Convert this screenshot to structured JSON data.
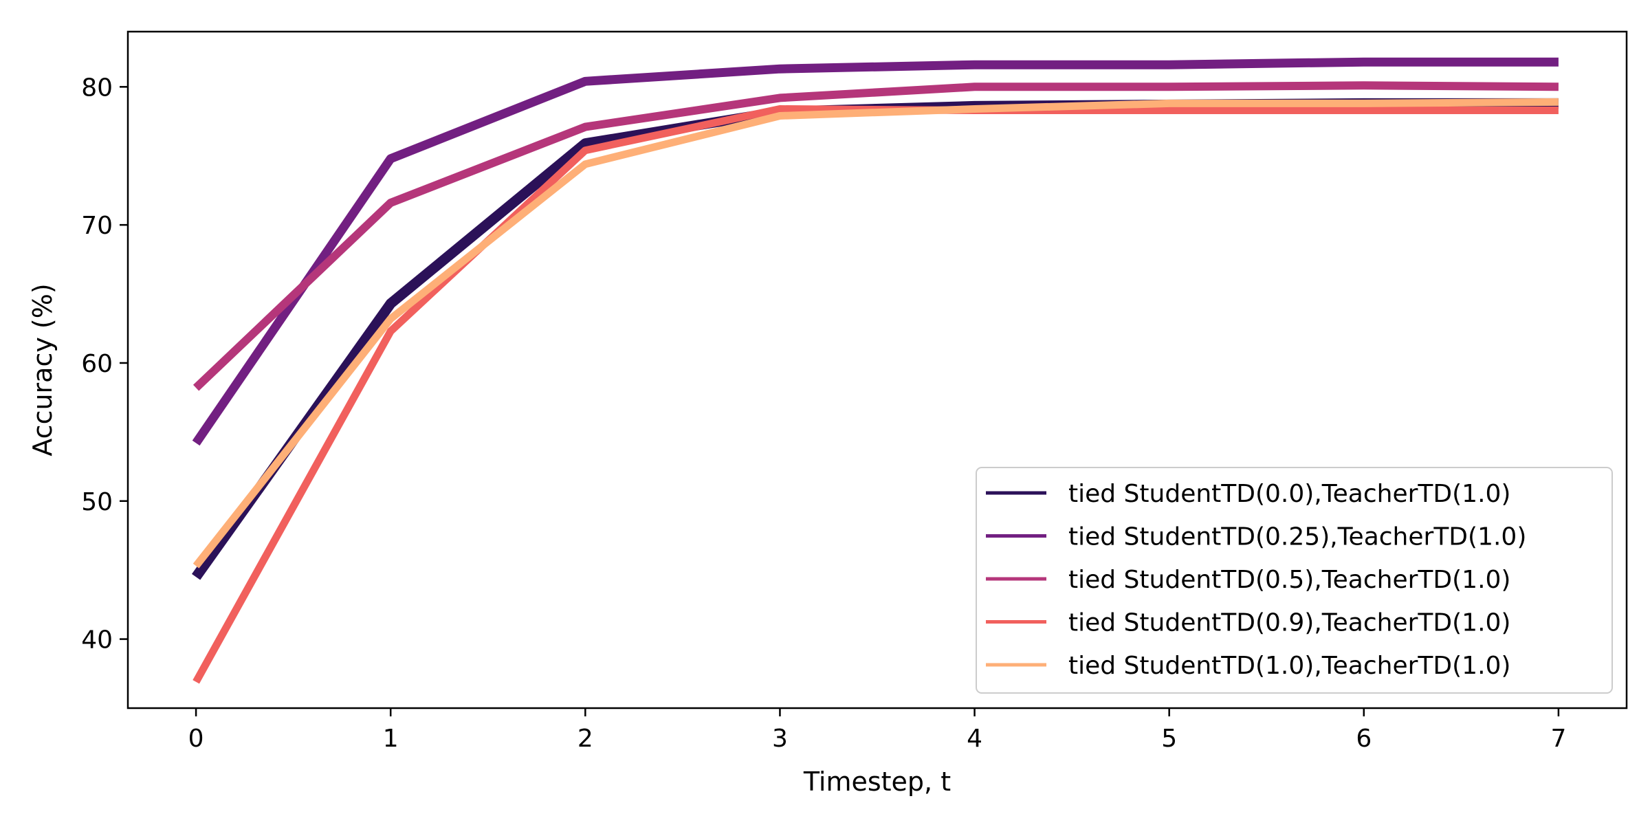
{
  "chart_data": {
    "type": "line",
    "title": "",
    "xlabel": "Timestep, t",
    "ylabel": "Accuracy (%)",
    "xlim": [
      -0.35,
      7.35
    ],
    "ylim": [
      35,
      84
    ],
    "x": [
      0,
      1,
      2,
      3,
      4,
      5,
      6,
      7
    ],
    "xticks": [
      "0",
      "1",
      "2",
      "3",
      "4",
      "5",
      "6",
      "7"
    ],
    "yticks": [
      40,
      50,
      60,
      70,
      80
    ],
    "grid": false,
    "legend": {
      "placement": "lower-right"
    },
    "series": [
      {
        "name": "tied StudentTD(0.0),TeacherTD(1.0)",
        "color": "#2b1158",
        "values": [
          44.5,
          64.3,
          75.9,
          78.2,
          78.6,
          78.7,
          78.8,
          78.8
        ]
      },
      {
        "name": "tied StudentTD(0.25),TeacherTD(1.0)",
        "color": "#721f81",
        "values": [
          54.2,
          74.8,
          80.4,
          81.3,
          81.6,
          81.6,
          81.8,
          81.8
        ]
      },
      {
        "name": "tied StudentTD(0.5),TeacherTD(1.0)",
        "color": "#b5367a",
        "values": [
          58.2,
          71.6,
          77.1,
          79.2,
          80.0,
          80.0,
          80.1,
          80.0
        ]
      },
      {
        "name": "tied StudentTD(0.9),TeacherTD(1.0)",
        "color": "#f1605d",
        "values": [
          36.9,
          62.3,
          75.4,
          78.4,
          78.3,
          78.3,
          78.3,
          78.3
        ]
      },
      {
        "name": "tied StudentTD(1.0),TeacherTD(1.0)",
        "color": "#feaf77",
        "values": [
          45.3,
          63.2,
          74.4,
          77.9,
          78.4,
          78.8,
          78.8,
          78.9
        ]
      }
    ]
  }
}
